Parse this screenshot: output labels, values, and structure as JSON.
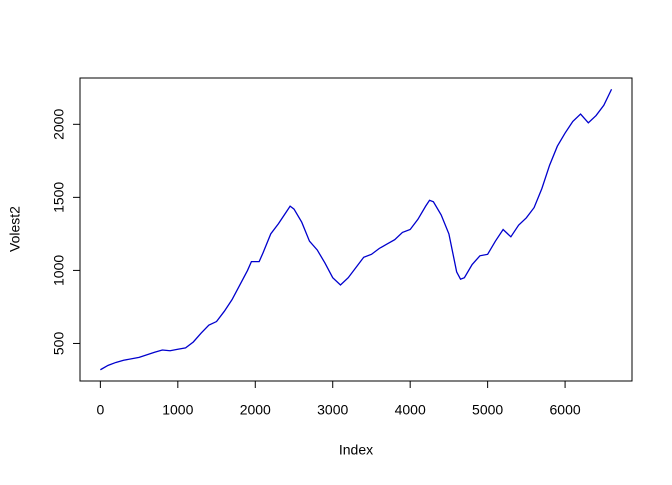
{
  "chart_data": {
    "type": "line",
    "xlabel": "Index",
    "ylabel": "Volest2",
    "x": [
      0,
      100,
      200,
      300,
      500,
      700,
      800,
      900,
      1000,
      1100,
      1200,
      1300,
      1400,
      1500,
      1600,
      1700,
      1800,
      1900,
      1950,
      2050,
      2100,
      2200,
      2300,
      2400,
      2450,
      2500,
      2600,
      2700,
      2800,
      2900,
      3000,
      3100,
      3200,
      3300,
      3400,
      3500,
      3600,
      3700,
      3800,
      3900,
      4000,
      4100,
      4200,
      4250,
      4300,
      4400,
      4500,
      4600,
      4650,
      4700,
      4800,
      4900,
      5000,
      5100,
      5200,
      5300,
      5400,
      5500,
      5600,
      5700,
      5800,
      5900,
      6000,
      6100,
      6200,
      6300,
      6400,
      6500,
      6600
    ],
    "series": [
      {
        "color": "#0000cd",
        "values": [
          320,
          350,
          370,
          385,
          405,
          440,
          455,
          450,
          460,
          470,
          510,
          570,
          625,
          650,
          720,
          800,
          900,
          1000,
          1060,
          1060,
          1120,
          1250,
          1320,
          1400,
          1440,
          1420,
          1330,
          1200,
          1140,
          1050,
          950,
          900,
          950,
          1020,
          1090,
          1110,
          1150,
          1180,
          1210,
          1260,
          1280,
          1350,
          1440,
          1480,
          1470,
          1380,
          1250,
          990,
          940,
          950,
          1040,
          1100,
          1110,
          1200,
          1280,
          1230,
          1310,
          1360,
          1430,
          1560,
          1720,
          1850,
          1940,
          2020,
          2070,
          2010,
          2060,
          2130,
          2240
        ]
      }
    ],
    "xlim": [
      -263,
      6864
    ],
    "ylim": [
      243,
      2317
    ],
    "xticks": [
      0,
      1000,
      2000,
      3000,
      4000,
      5000,
      6000
    ],
    "yticks": [
      500,
      1000,
      1500,
      2000
    ]
  }
}
